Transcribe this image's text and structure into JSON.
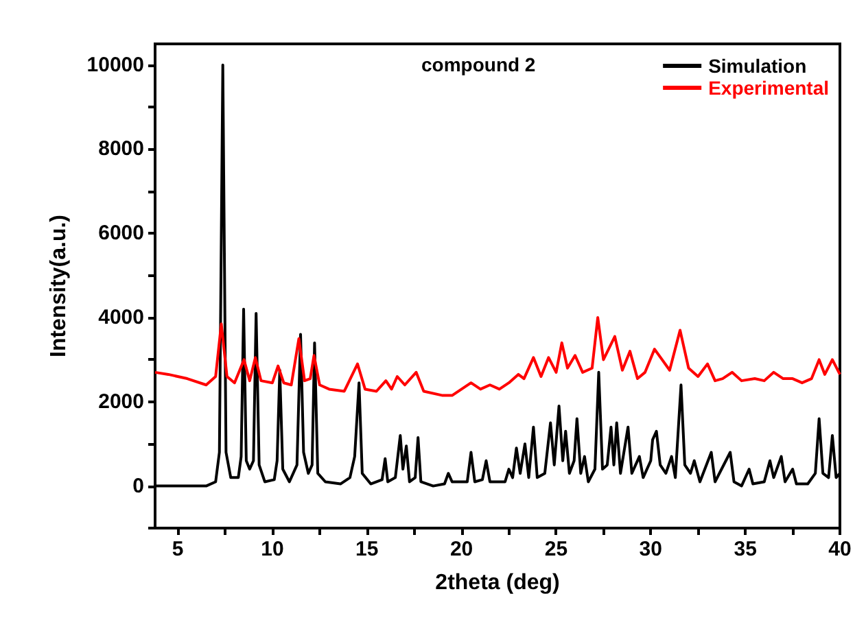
{
  "chart_data": {
    "type": "line",
    "xlabel": "2theta (deg)",
    "ylabel": "Intensity(a.u.)",
    "annotations": [
      "compound 2"
    ],
    "xlim": [
      3.8,
      40
    ],
    "ylim": [
      -1000,
      10500
    ],
    "xticks": [
      5,
      {
        "value": 7.5,
        "label": null
      },
      10,
      {
        "value": 12.5,
        "label": null
      },
      15,
      {
        "value": 17.5,
        "label": null
      },
      20,
      {
        "value": 22.5,
        "label": null
      },
      25,
      {
        "value": 27.5,
        "label": null
      },
      30,
      {
        "value": 32.5,
        "label": null
      },
      35,
      {
        "value": 37.5,
        "label": null
      },
      40
    ],
    "yticks": [
      {
        "value": -1000,
        "label": null
      },
      0,
      {
        "value": 1000,
        "label": null
      },
      2000,
      {
        "value": 3000,
        "label": null
      },
      4000,
      {
        "value": 5000,
        "label": null
      },
      6000,
      {
        "value": 7000,
        "label": null
      },
      8000,
      {
        "value": 9000,
        "label": null
      },
      10000
    ],
    "grid": false,
    "legend": "top right",
    "marker": "none",
    "line_style": "solid",
    "series": [
      {
        "name": "Simulation",
        "color": "#000000",
        "x": [
          3.8,
          5,
          6.5,
          7.0,
          7.2,
          7.38,
          7.55,
          7.8,
          8.2,
          8.35,
          8.48,
          8.62,
          8.8,
          9.0,
          9.14,
          9.3,
          9.6,
          10.1,
          10.25,
          10.39,
          10.55,
          10.9,
          11.3,
          11.49,
          11.65,
          11.9,
          12.1,
          12.23,
          12.4,
          12.8,
          13.6,
          14.1,
          14.35,
          14.58,
          14.75,
          15.2,
          15.8,
          15.96,
          16.1,
          16.5,
          16.76,
          16.9,
          17.08,
          17.25,
          17.55,
          17.7,
          17.85,
          18.5,
          19.1,
          19.3,
          19.5,
          20.3,
          20.5,
          20.7,
          21.1,
          21.3,
          21.5,
          22.3,
          22.5,
          22.7,
          22.9,
          23.1,
          23.35,
          23.55,
          23.8,
          24.0,
          24.4,
          24.7,
          24.9,
          25.15,
          25.35,
          25.5,
          25.7,
          25.95,
          26.1,
          26.3,
          26.5,
          26.7,
          27.05,
          27.25,
          27.45,
          27.7,
          27.9,
          28.05,
          28.2,
          28.4,
          28.8,
          29.0,
          29.4,
          29.6,
          30.0,
          30.1,
          30.3,
          30.5,
          30.8,
          31.1,
          31.3,
          31.6,
          31.8,
          32.1,
          32.3,
          32.6,
          33.2,
          33.4,
          34.2,
          34.4,
          34.8,
          35.2,
          35.4,
          36.0,
          36.3,
          36.5,
          36.9,
          37.1,
          37.5,
          37.7,
          38.3,
          38.7,
          38.9,
          39.1,
          39.4,
          39.6,
          39.8,
          40
        ],
        "values": [
          0,
          0,
          0,
          100,
          800,
          10000,
          800,
          200,
          200,
          700,
          4200,
          600,
          400,
          600,
          4100,
          500,
          100,
          150,
          600,
          2750,
          400,
          100,
          500,
          3600,
          800,
          300,
          500,
          3400,
          300,
          100,
          50,
          200,
          700,
          2450,
          300,
          50,
          150,
          650,
          100,
          200,
          1200,
          400,
          950,
          100,
          200,
          1150,
          100,
          0,
          50,
          300,
          100,
          100,
          800,
          100,
          150,
          600,
          100,
          100,
          400,
          200,
          900,
          300,
          1000,
          200,
          1400,
          200,
          300,
          1500,
          500,
          1900,
          600,
          1300,
          300,
          600,
          1600,
          300,
          700,
          100,
          400,
          2700,
          400,
          500,
          1400,
          500,
          1500,
          300,
          1400,
          300,
          700,
          200,
          600,
          1100,
          1300,
          500,
          300,
          700,
          200,
          2400,
          500,
          300,
          600,
          100,
          800,
          100,
          800,
          100,
          0,
          400,
          50,
          100,
          600,
          200,
          700,
          100,
          400,
          50,
          50,
          300,
          1600,
          300,
          200,
          1200,
          200,
          300
        ]
      },
      {
        "name": "Experimental",
        "color": "#ff0000",
        "x": [
          3.8,
          4.5,
          5.5,
          6.5,
          7.0,
          7.3,
          7.6,
          8.0,
          8.5,
          8.8,
          9.1,
          9.4,
          10.0,
          10.3,
          10.6,
          11.0,
          11.4,
          11.7,
          12.0,
          12.2,
          12.5,
          13.0,
          13.8,
          14.5,
          14.9,
          15.5,
          16.0,
          16.3,
          16.6,
          17.0,
          17.6,
          18.0,
          19.0,
          19.5,
          20.0,
          20.5,
          21.0,
          21.5,
          22.0,
          22.5,
          23.0,
          23.3,
          23.8,
          24.2,
          24.6,
          25.0,
          25.3,
          25.6,
          26.0,
          26.4,
          26.9,
          27.2,
          27.5,
          28.1,
          28.5,
          28.9,
          29.3,
          29.7,
          30.2,
          30.6,
          31.0,
          31.55,
          32.0,
          32.5,
          33.0,
          33.4,
          33.8,
          34.3,
          34.8,
          35.5,
          36.0,
          36.5,
          37.0,
          37.5,
          38.0,
          38.5,
          38.9,
          39.2,
          39.6,
          40
        ],
        "values": [
          2700,
          2650,
          2550,
          2400,
          2600,
          3850,
          2600,
          2450,
          3000,
          2500,
          3050,
          2500,
          2450,
          2850,
          2450,
          2400,
          3500,
          2500,
          2550,
          3100,
          2400,
          2300,
          2250,
          2900,
          2300,
          2250,
          2500,
          2300,
          2600,
          2400,
          2700,
          2250,
          2150,
          2150,
          2300,
          2450,
          2300,
          2400,
          2300,
          2450,
          2650,
          2550,
          3050,
          2600,
          3050,
          2700,
          3400,
          2800,
          3100,
          2700,
          2800,
          4000,
          3000,
          3550,
          2750,
          3200,
          2550,
          2700,
          3250,
          3000,
          2750,
          3700,
          2800,
          2600,
          2900,
          2500,
          2550,
          2700,
          2500,
          2550,
          2500,
          2700,
          2550,
          2550,
          2450,
          2550,
          3000,
          2650,
          3000,
          2650
        ]
      }
    ]
  }
}
